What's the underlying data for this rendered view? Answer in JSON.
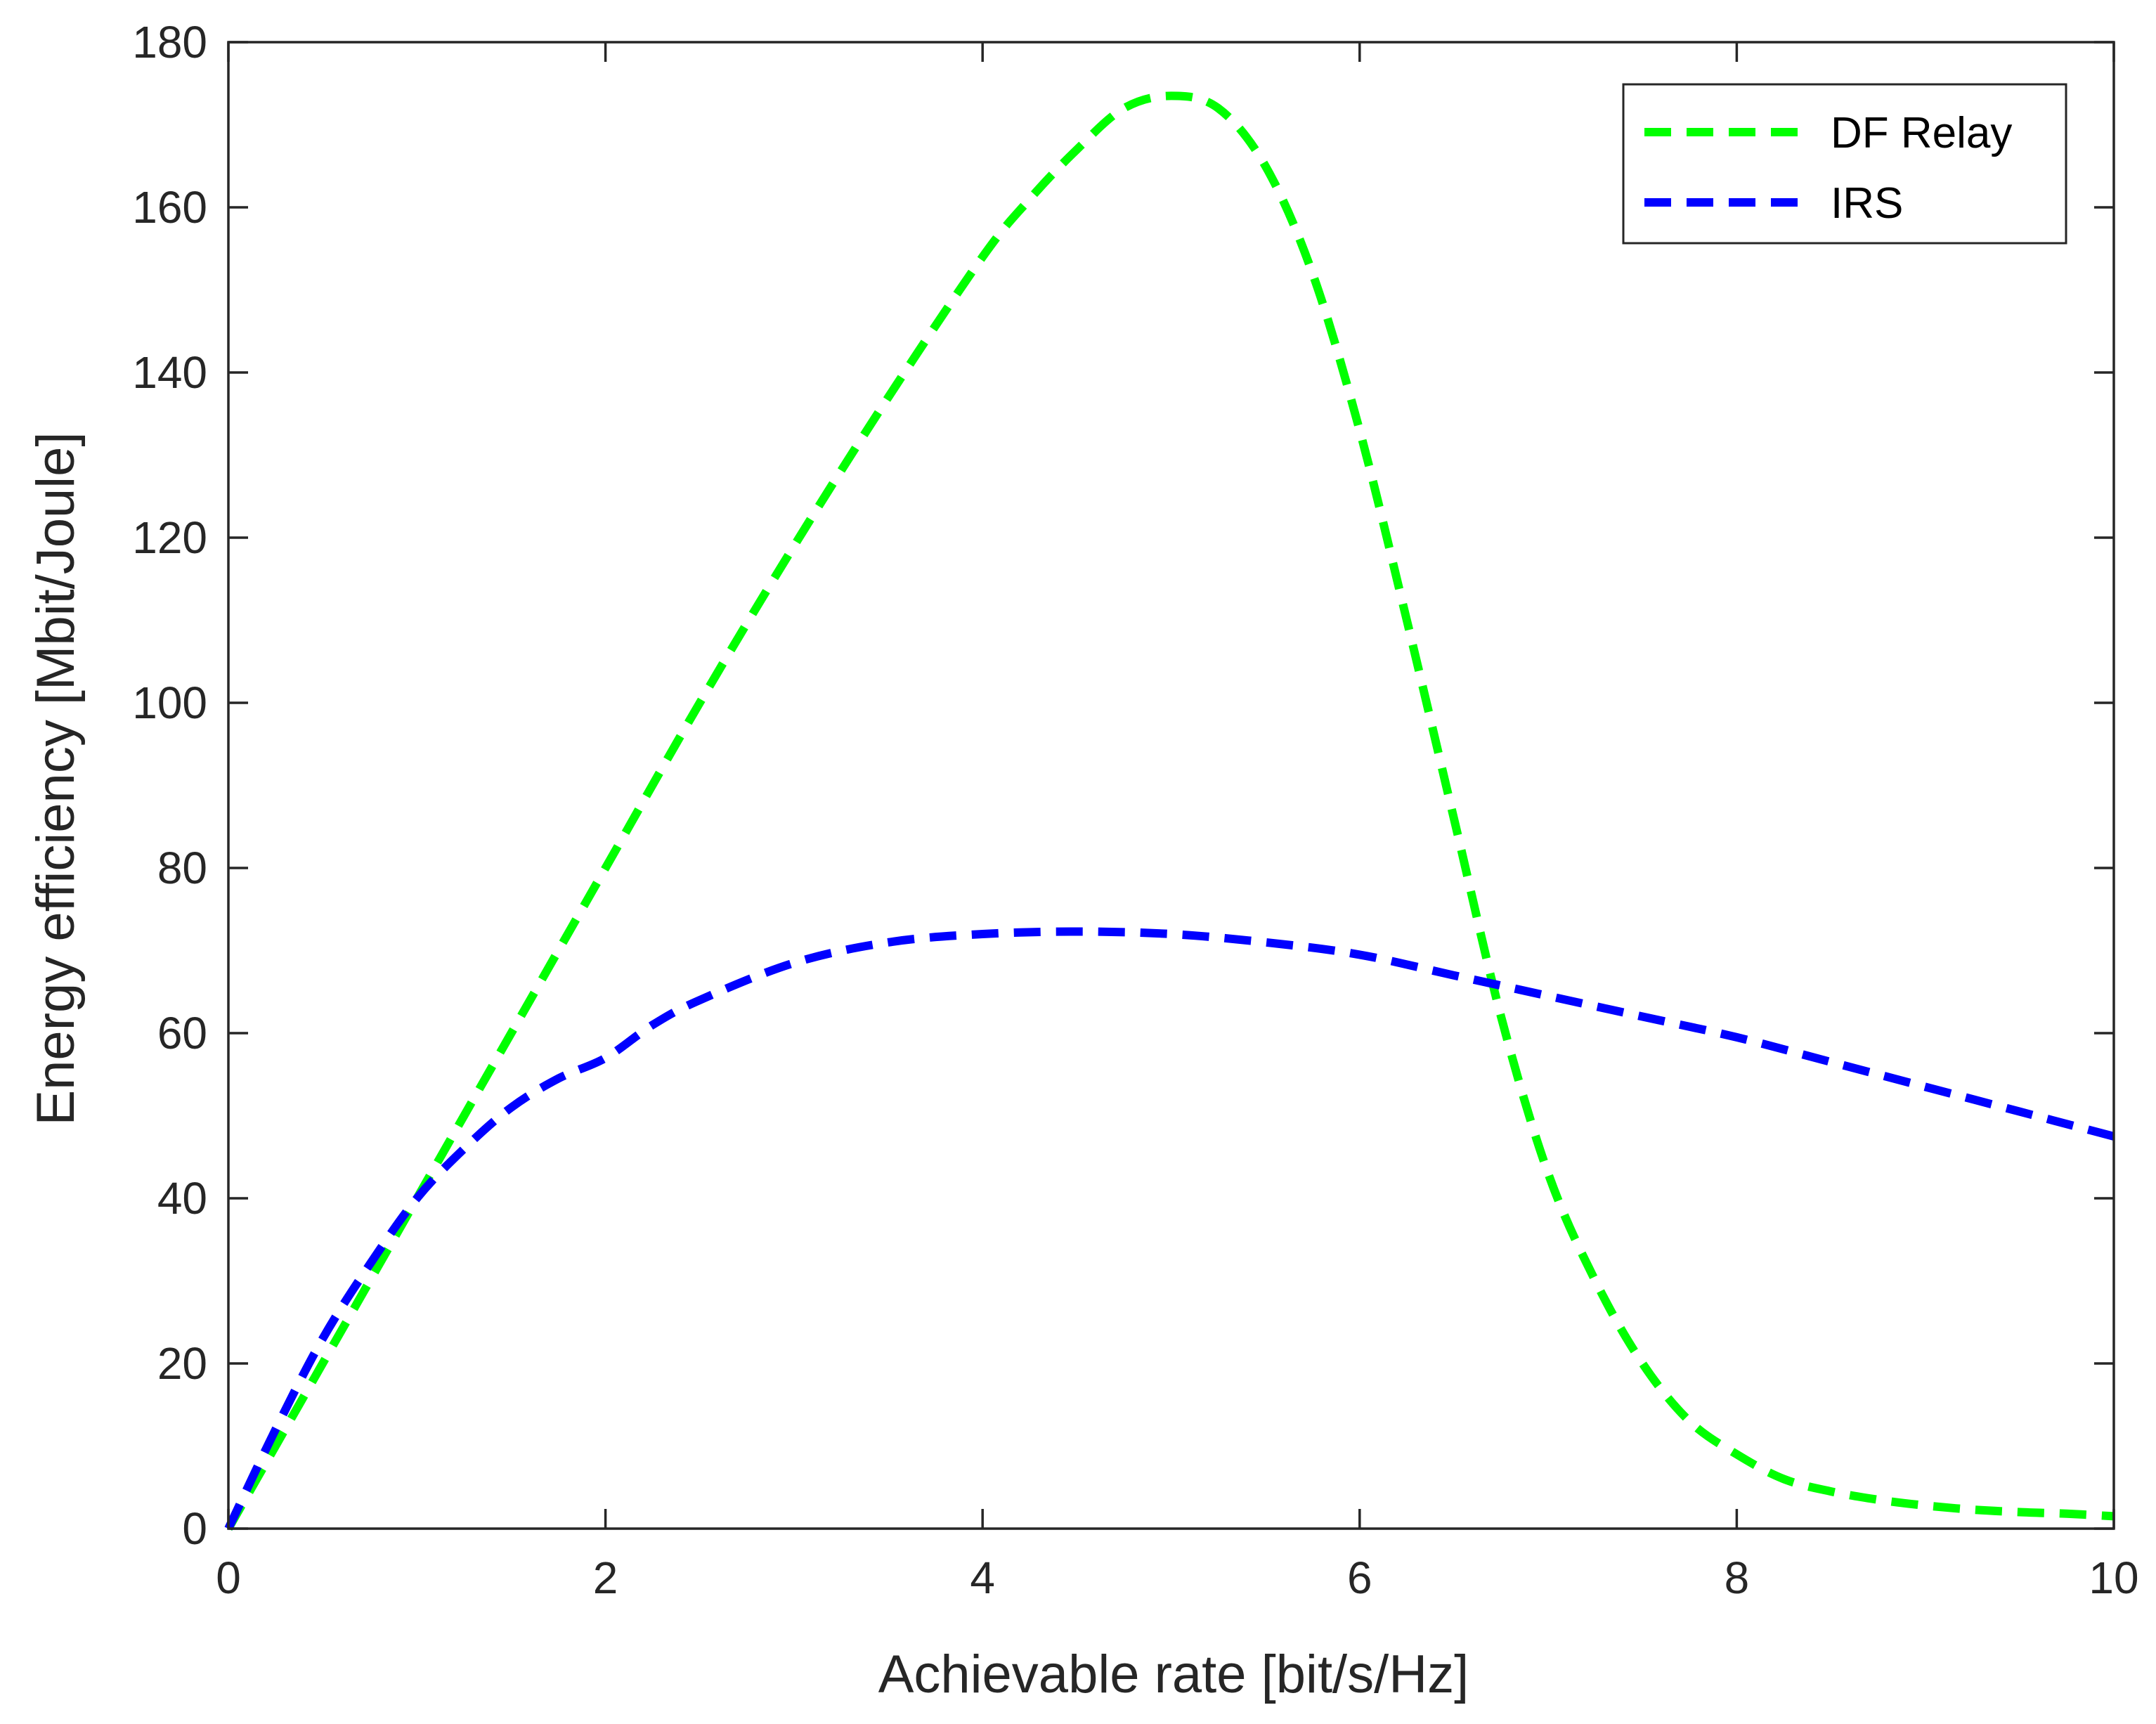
{
  "chart_data": {
    "type": "line",
    "title": "",
    "xlabel": "Achievable rate [bit/s/Hz]",
    "ylabel": "Energy efficiency [Mbit/Joule]",
    "xlim": [
      0,
      10
    ],
    "ylim": [
      0,
      180
    ],
    "xticks": [
      0,
      2,
      4,
      6,
      8,
      10
    ],
    "yticks": [
      0,
      20,
      40,
      60,
      80,
      100,
      120,
      140,
      160,
      180
    ],
    "grid": false,
    "legend_position": "top-right",
    "series": [
      {
        "name": "DF Relay",
        "color": "#00ff00",
        "style": "dashed",
        "x": [
          0,
          0.25,
          0.5,
          0.75,
          1.0,
          1.25,
          1.5,
          2.0,
          2.5,
          3.0,
          3.5,
          4.0,
          4.25,
          4.5,
          4.75,
          5.0,
          5.25,
          5.5,
          5.75,
          6.0,
          6.25,
          6.5,
          6.75,
          7.0,
          7.25,
          7.5,
          7.75,
          8.0,
          8.25,
          8.5,
          8.75,
          9.0,
          9.25,
          9.5,
          9.75,
          10.0
        ],
        "y": [
          0,
          10,
          20,
          30,
          40,
          50,
          60,
          80,
          100,
          119,
          137,
          154,
          161,
          167,
          172,
          173.5,
          172,
          165,
          152,
          133,
          110,
          86,
          62,
          43,
          30,
          20,
          13,
          9,
          6,
          4.5,
          3.5,
          2.8,
          2.3,
          2,
          1.8,
          1.5
        ]
      },
      {
        "name": "IRS",
        "color": "#0000ff",
        "style": "dashed",
        "x": [
          0,
          0.25,
          0.5,
          0.75,
          1.0,
          1.25,
          1.5,
          1.75,
          2.0,
          2.25,
          2.5,
          3.0,
          3.5,
          4.0,
          4.5,
          5.0,
          5.5,
          6.0,
          6.5,
          7.0,
          7.5,
          8.0,
          8.5,
          9.0,
          9.5,
          10.0
        ],
        "y": [
          0,
          12,
          23,
          32,
          40,
          46,
          51,
          54.5,
          57,
          61,
          64,
          68.5,
          71,
          72,
          72.3,
          72,
          71,
          69.5,
          67,
          64.5,
          62,
          59.5,
          56.5,
          53.5,
          50.5,
          47.5
        ]
      }
    ]
  }
}
